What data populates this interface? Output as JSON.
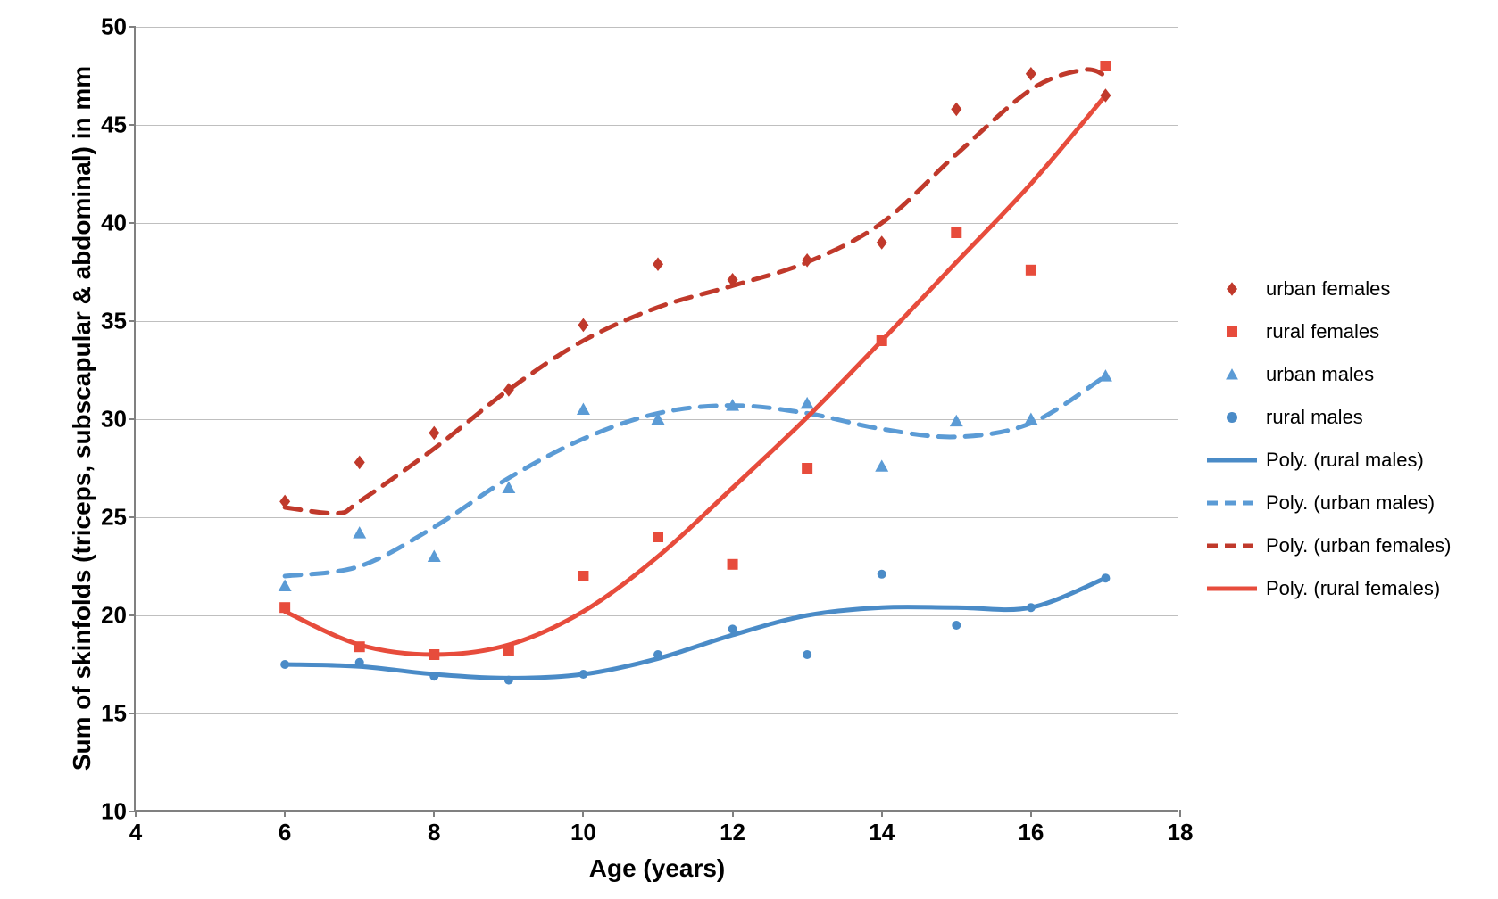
{
  "chart": {
    "type": "scatter-with-trendlines",
    "x_axis": {
      "title": "Age (years)",
      "min": 4,
      "max": 18,
      "tick_step": 2,
      "ticks": [
        4,
        6,
        8,
        10,
        12,
        14,
        16,
        18
      ],
      "title_fontsize": 28,
      "tick_fontsize": 26,
      "tick_fontweight": "bold"
    },
    "y_axis": {
      "title": "Sum of skinfolds (triceps, subscapular & abdominal) in mm",
      "min": 10,
      "max": 50,
      "tick_step": 5,
      "ticks": [
        10,
        15,
        20,
        25,
        30,
        35,
        40,
        45,
        50
      ],
      "title_fontsize": 28,
      "tick_fontsize": 26,
      "tick_fontweight": "bold"
    },
    "background_color": "#ffffff",
    "grid_color": "#bfbfbf",
    "axis_color": "#808080",
    "series": [
      {
        "name": "urban females",
        "marker": "diamond",
        "color": "#c0392b",
        "marker_size": 12,
        "x": [
          6,
          7,
          8,
          9,
          10,
          11,
          12,
          13,
          14,
          15,
          16,
          17
        ],
        "y": [
          25.8,
          27.8,
          29.3,
          31.5,
          34.8,
          37.9,
          37.1,
          38.1,
          39.0,
          45.8,
          47.6,
          46.5
        ]
      },
      {
        "name": "rural females",
        "marker": "square",
        "color": "#e74c3c",
        "marker_size": 12,
        "x": [
          6,
          7,
          8,
          9,
          10,
          11,
          12,
          13,
          14,
          15,
          16,
          17
        ],
        "y": [
          20.4,
          18.4,
          18.0,
          18.2,
          22.0,
          24.0,
          22.6,
          27.5,
          34.0,
          39.5,
          37.6,
          48.0
        ]
      },
      {
        "name": "urban males",
        "marker": "triangle",
        "color": "#5b9bd5",
        "marker_size": 13,
        "x": [
          6,
          7,
          8,
          9,
          10,
          11,
          12,
          13,
          14,
          15,
          16,
          17
        ],
        "y": [
          21.5,
          24.2,
          23.0,
          26.5,
          30.5,
          30.0,
          30.7,
          30.8,
          27.6,
          29.9,
          30.0,
          32.2
        ]
      },
      {
        "name": "rural males",
        "marker": "circle",
        "color": "#4a8bc7",
        "marker_size": 10,
        "x": [
          6,
          7,
          8,
          9,
          10,
          11,
          12,
          13,
          14,
          15,
          16,
          17
        ],
        "y": [
          17.5,
          17.6,
          16.9,
          16.7,
          17.0,
          18.0,
          19.3,
          18.0,
          22.1,
          19.5,
          20.4,
          21.9
        ]
      }
    ],
    "trendlines": [
      {
        "name": "Poly. (rural males)",
        "style": "solid",
        "color": "#4a8bc7",
        "width": 5,
        "points": [
          [
            6,
            17.5
          ],
          [
            7,
            17.4
          ],
          [
            8,
            17.0
          ],
          [
            9,
            16.8
          ],
          [
            10,
            17.0
          ],
          [
            11,
            17.8
          ],
          [
            12,
            19.0
          ],
          [
            13,
            20.0
          ],
          [
            14,
            20.4
          ],
          [
            15,
            20.4
          ],
          [
            16,
            20.4
          ],
          [
            17,
            21.9
          ]
        ]
      },
      {
        "name": "Poly. (urban males)",
        "style": "dashed",
        "color": "#5b9bd5",
        "width": 5,
        "dash": "18 12",
        "points": [
          [
            6,
            22.0
          ],
          [
            7,
            22.5
          ],
          [
            8,
            24.5
          ],
          [
            9,
            27.0
          ],
          [
            10,
            29.0
          ],
          [
            11,
            30.3
          ],
          [
            12,
            30.7
          ],
          [
            13,
            30.3
          ],
          [
            14,
            29.5
          ],
          [
            15,
            29.1
          ],
          [
            16,
            29.8
          ],
          [
            17,
            32.2
          ]
        ]
      },
      {
        "name": "Poly. (urban females)",
        "style": "dashed",
        "color": "#c0392b",
        "width": 5,
        "dash": "18 12",
        "points": [
          [
            6,
            25.5
          ],
          [
            6.7,
            25.2
          ],
          [
            7,
            25.8
          ],
          [
            8,
            28.5
          ],
          [
            9,
            31.5
          ],
          [
            10,
            34.0
          ],
          [
            11,
            35.7
          ],
          [
            12,
            36.8
          ],
          [
            13,
            38.0
          ],
          [
            14,
            40.0
          ],
          [
            15,
            43.5
          ],
          [
            16,
            46.8
          ],
          [
            16.7,
            47.8
          ],
          [
            17,
            47.5
          ]
        ]
      },
      {
        "name": "Poly. (rural females)",
        "style": "solid",
        "color": "#e74c3c",
        "width": 5,
        "points": [
          [
            6,
            20.2
          ],
          [
            7,
            18.5
          ],
          [
            8,
            18.0
          ],
          [
            9,
            18.5
          ],
          [
            10,
            20.2
          ],
          [
            11,
            23.0
          ],
          [
            12,
            26.5
          ],
          [
            13,
            30.1
          ],
          [
            14,
            34.0
          ],
          [
            15,
            38.0
          ],
          [
            16,
            42.0
          ],
          [
            17,
            46.5
          ]
        ]
      }
    ],
    "legend": {
      "items": [
        {
          "label": "urban females",
          "type": "marker",
          "marker": "diamond",
          "color": "#c0392b"
        },
        {
          "label": "rural females",
          "type": "marker",
          "marker": "square",
          "color": "#e74c3c"
        },
        {
          "label": "urban males",
          "type": "marker",
          "marker": "triangle",
          "color": "#5b9bd5"
        },
        {
          "label": "rural males",
          "type": "marker",
          "marker": "circle",
          "color": "#4a8bc7"
        },
        {
          "label": "Poly. (rural males)",
          "type": "line",
          "style": "solid",
          "color": "#4a8bc7"
        },
        {
          "label": "Poly. (urban males)",
          "type": "line",
          "style": "dashed",
          "color": "#5b9bd5"
        },
        {
          "label": "Poly. (urban females)",
          "type": "line",
          "style": "dashed",
          "color": "#c0392b"
        },
        {
          "label": "Poly. (rural females)",
          "type": "line",
          "style": "solid",
          "color": "#e74c3c"
        }
      ],
      "fontsize": 22
    }
  }
}
